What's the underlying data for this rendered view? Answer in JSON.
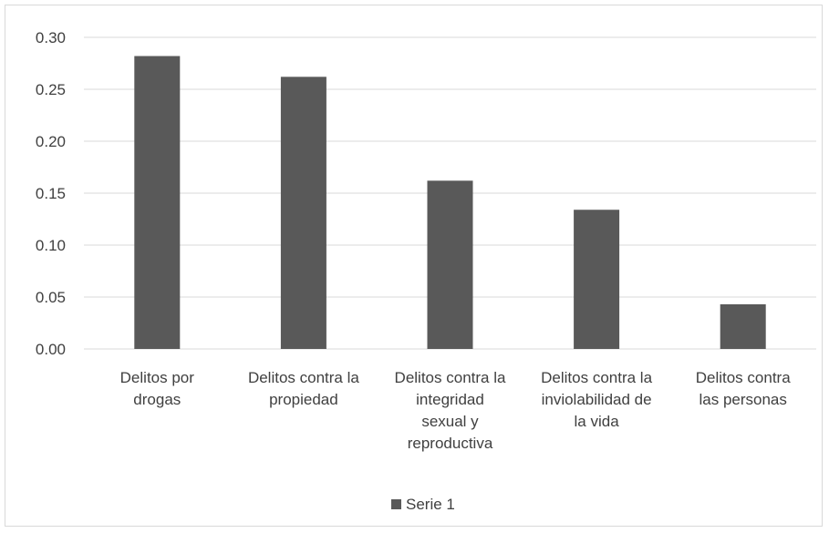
{
  "chart_data": {
    "type": "bar",
    "categories": [
      [
        "Delitos por",
        "drogas"
      ],
      [
        "Delitos contra la",
        "propiedad"
      ],
      [
        "Delitos contra la",
        "integridad",
        "sexual y",
        "reproductiva"
      ],
      [
        "Delitos contra la",
        "inviolabilidad de",
        "la vida"
      ],
      [
        "Delitos contra",
        "las personas"
      ]
    ],
    "series": [
      {
        "name": "Serie 1",
        "values": [
          0.282,
          0.262,
          0.162,
          0.134,
          0.043
        ],
        "color": "#595959"
      }
    ],
    "ylim": [
      0,
      0.3
    ],
    "yticks": [
      "0.00",
      "0.05",
      "0.10",
      "0.15",
      "0.20",
      "0.25",
      "0.30"
    ],
    "grid": true,
    "gridline_color": "#d9d9d9",
    "legend_position": "bottom"
  }
}
